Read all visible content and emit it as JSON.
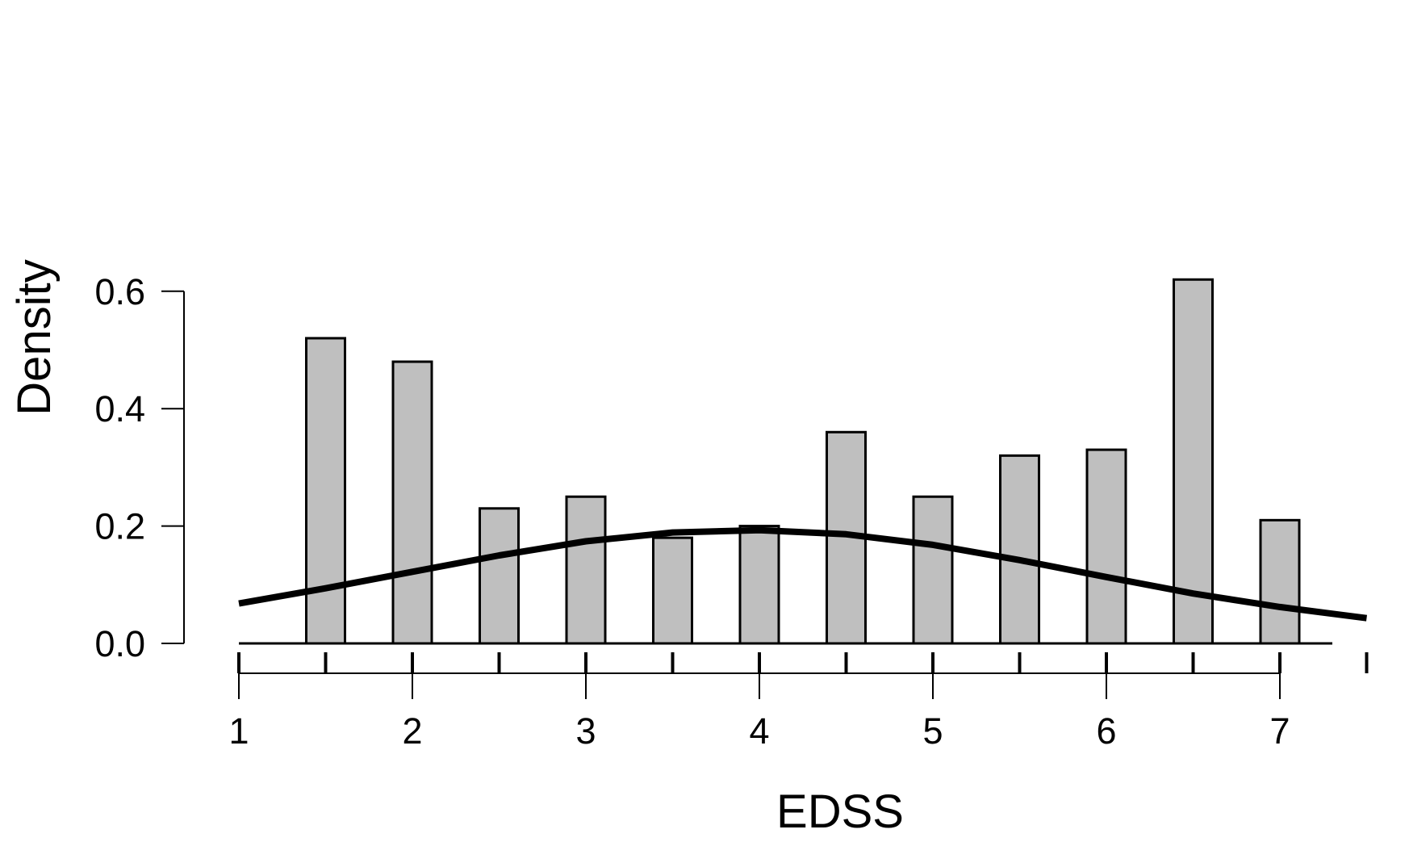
{
  "chart_data": {
    "type": "bar",
    "xlabel": "EDSS",
    "ylabel": "Density",
    "xlim": [
      1,
      7.5
    ],
    "ylim": [
      0,
      0.6
    ],
    "x_ticks": [
      1,
      2,
      3,
      4,
      5,
      6,
      7
    ],
    "x_tick_labels": [
      "1",
      "2",
      "3",
      "4",
      "5",
      "6",
      "7"
    ],
    "y_ticks": [
      0,
      0.2,
      0.4,
      0.6
    ],
    "y_tick_labels": [
      "0.0",
      "0.2",
      "0.4",
      "0.6"
    ],
    "rug": [
      1,
      1.5,
      2,
      2.5,
      3,
      3.5,
      4,
      4.5,
      5,
      5.5,
      6,
      6.5,
      7,
      7.5
    ],
    "bars": [
      {
        "x": 1.5,
        "density": 0.52
      },
      {
        "x": 2.0,
        "density": 0.48
      },
      {
        "x": 2.5,
        "density": 0.23
      },
      {
        "x": 3.0,
        "density": 0.25
      },
      {
        "x": 3.5,
        "density": 0.18
      },
      {
        "x": 4.0,
        "density": 0.2
      },
      {
        "x": 4.5,
        "density": 0.36
      },
      {
        "x": 5.0,
        "density": 0.25
      },
      {
        "x": 5.5,
        "density": 0.32
      },
      {
        "x": 6.0,
        "density": 0.33
      },
      {
        "x": 6.5,
        "density": 0.62
      },
      {
        "x": 7.0,
        "density": 0.21
      }
    ],
    "density_curve": {
      "x": [
        1.0,
        1.5,
        2.0,
        2.5,
        3.0,
        3.5,
        4.0,
        4.5,
        5.0,
        5.5,
        6.0,
        6.5,
        7.0,
        7.5
      ],
      "y": [
        0.068,
        0.094,
        0.122,
        0.15,
        0.174,
        0.189,
        0.193,
        0.186,
        0.168,
        0.142,
        0.113,
        0.085,
        0.062,
        0.043
      ]
    },
    "bar_color": "#bfbfbf",
    "line_color": "#000000",
    "grid": false,
    "legend": "none"
  }
}
